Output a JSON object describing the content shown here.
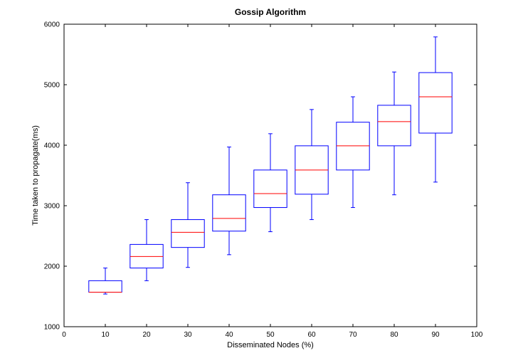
{
  "chart_data": {
    "type": "box",
    "title": "Gossip Algorithm",
    "xlabel": "Disseminated Nodes (%)",
    "ylabel": "Time taken to propagate(ms)",
    "xlim": [
      0,
      100
    ],
    "ylim": [
      1000,
      6000
    ],
    "xticks": [
      0,
      10,
      20,
      30,
      40,
      50,
      60,
      70,
      80,
      90,
      100
    ],
    "yticks": [
      1000,
      2000,
      3000,
      4000,
      5000,
      6000
    ],
    "grid": false,
    "colors": {
      "box": "#0000ff",
      "median": "#ff0000",
      "axes": "#000000"
    },
    "boxes": [
      {
        "x": 10,
        "min": 1540,
        "q1": 1570,
        "median": 1570,
        "q3": 1760,
        "max": 1970
      },
      {
        "x": 20,
        "min": 1760,
        "q1": 1970,
        "median": 2160,
        "q3": 2360,
        "max": 2770
      },
      {
        "x": 30,
        "min": 1980,
        "q1": 2310,
        "median": 2560,
        "q3": 2770,
        "max": 3380
      },
      {
        "x": 40,
        "min": 2190,
        "q1": 2580,
        "median": 2790,
        "q3": 3180,
        "max": 3970
      },
      {
        "x": 50,
        "min": 2570,
        "q1": 2970,
        "median": 3200,
        "q3": 3590,
        "max": 4190
      },
      {
        "x": 60,
        "min": 2770,
        "q1": 3190,
        "median": 3590,
        "q3": 3990,
        "max": 4590
      },
      {
        "x": 70,
        "min": 2970,
        "q1": 3590,
        "median": 3990,
        "q3": 4380,
        "max": 4800
      },
      {
        "x": 80,
        "min": 3180,
        "q1": 3990,
        "median": 4390,
        "q3": 4660,
        "max": 5210
      },
      {
        "x": 90,
        "min": 3390,
        "q1": 4200,
        "median": 4800,
        "q3": 5200,
        "max": 5790
      }
    ]
  }
}
